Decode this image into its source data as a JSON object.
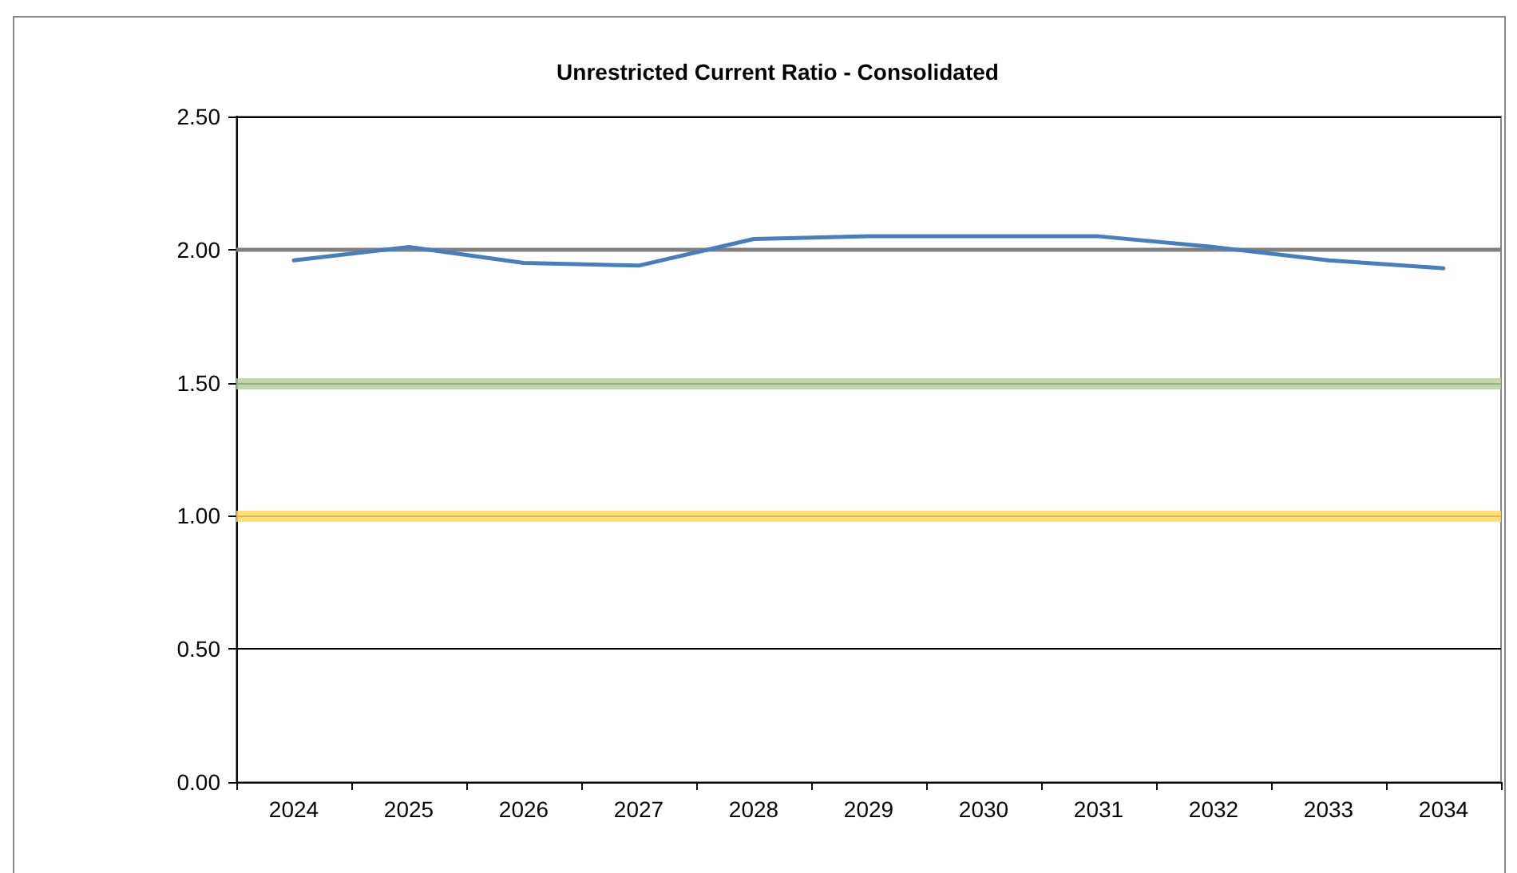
{
  "chart_data": {
    "type": "line",
    "title": "Unrestricted Current Ratio - Consolidated",
    "categories": [
      "2024",
      "2025",
      "2026",
      "2027",
      "2028",
      "2029",
      "2030",
      "2031",
      "2032",
      "2033",
      "2034"
    ],
    "series": [
      {
        "color": "#4a7ebb",
        "values": [
          1.96,
          2.01,
          1.95,
          1.94,
          2.04,
          2.05,
          2.05,
          2.05,
          2.01,
          1.96,
          1.93
        ]
      }
    ],
    "ylim": [
      0,
      2.5
    ],
    "yticks": [
      {
        "value": 0,
        "label": "0.00"
      },
      {
        "value": 0.5,
        "label": "0.50"
      },
      {
        "value": 1,
        "label": "1.00"
      },
      {
        "value": 1.5,
        "label": "1.50"
      },
      {
        "value": 2,
        "label": "2.00"
      },
      {
        "value": 2.5,
        "label": "2.50"
      }
    ],
    "grid": "y",
    "marker": "none",
    "line_style": "solid",
    "ref_lines": [
      {
        "axis": "y",
        "value": 2,
        "color": "#808080"
      },
      {
        "axis": "y",
        "value": 1.5,
        "color": "#b5d19a"
      },
      {
        "axis": "y",
        "value": 1,
        "color": "#ffd966"
      }
    ]
  }
}
